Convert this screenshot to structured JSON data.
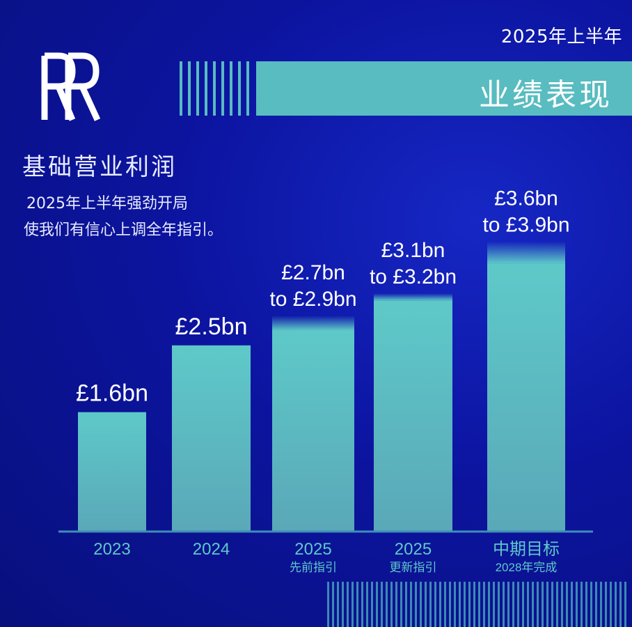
{
  "header": {
    "period": "2025年上半年",
    "banner_title": "业绩表现"
  },
  "logo": {
    "monogram": "RR"
  },
  "metric": {
    "title": "基础营业利润",
    "subtitle_line1": "2025年上半年强劲开局",
    "subtitle_line2": "使我们有信心上调全年指引。"
  },
  "colors": {
    "background": "#0c149f",
    "bar": "#5ec9c9",
    "banner": "#58bcc0",
    "axis_label": "#5ec9c9"
  },
  "chart_data": {
    "type": "bar",
    "unit": "£bn",
    "ylim": [
      0,
      4.2
    ],
    "categories": [
      {
        "label": "2023",
        "sublabel": ""
      },
      {
        "label": "2024",
        "sublabel": ""
      },
      {
        "label": "2025",
        "sublabel": "先前指引"
      },
      {
        "label": "2025",
        "sublabel": "更新指引"
      },
      {
        "label": "中期目标",
        "sublabel": "2028年完成"
      }
    ],
    "values": [
      {
        "low": 1.6,
        "high": 1.6,
        "label_line1": "£1.6bn",
        "label_line2": ""
      },
      {
        "low": 2.5,
        "high": 2.5,
        "label_line1": "£2.5bn",
        "label_line2": ""
      },
      {
        "low": 2.7,
        "high": 2.9,
        "label_line1": "£2.7bn",
        "label_line2": "to £2.9bn"
      },
      {
        "low": 3.1,
        "high": 3.2,
        "label_line1": "£3.1bn",
        "label_line2": "to £3.2bn"
      },
      {
        "low": 3.6,
        "high": 3.9,
        "label_line1": "£3.6bn",
        "label_line2": "to £3.9bn"
      }
    ]
  }
}
